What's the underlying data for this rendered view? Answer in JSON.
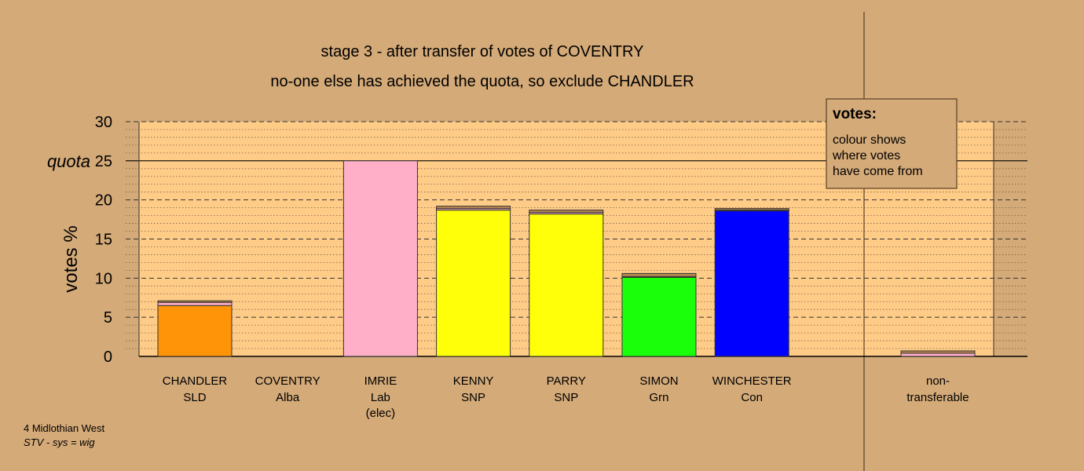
{
  "chart_data": {
    "type": "bar",
    "title": "stage 3 - after transfer of votes of COVENTRY",
    "subtitle": "no-one else has achieved the quota, so exclude CHANDLER",
    "ylabel": "votes %",
    "ylim": [
      0,
      30
    ],
    "yticks": [
      "0",
      "5",
      "10",
      "15",
      "20",
      "25",
      "30"
    ],
    "quota": 25,
    "quota_label": "quota",
    "grid": true,
    "categories": [
      {
        "name": "CHANDLER",
        "party": "SLD",
        "note": ""
      },
      {
        "name": "COVENTRY",
        "party": "Alba",
        "note": ""
      },
      {
        "name": "IMRIE",
        "party": "Lab",
        "note": "(elec)"
      },
      {
        "name": "KENNY",
        "party": "SNP",
        "note": ""
      },
      {
        "name": "PARRY",
        "party": "SNP",
        "note": ""
      },
      {
        "name": "SIMON",
        "party": "Grn",
        "note": ""
      },
      {
        "name": "WINCHESTER",
        "party": "Con",
        "note": ""
      }
    ],
    "bars": [
      {
        "segments": [
          {
            "from": "SLD",
            "value": 6.5,
            "color": "#ff9408"
          },
          {
            "from": "Lab",
            "value": 0.4,
            "color": "#ffb0c8"
          },
          {
            "from": "Alba",
            "value": 0.2,
            "color": "#b9874f"
          }
        ]
      },
      {
        "segments": []
      },
      {
        "segments": [
          {
            "from": "Lab",
            "value": 25.0,
            "color": "#ffb0c8"
          }
        ]
      },
      {
        "segments": [
          {
            "from": "SNP",
            "value": 18.7,
            "color": "#ffff0a"
          },
          {
            "from": "Lab",
            "value": 0.2,
            "color": "#ffb0c8"
          },
          {
            "from": "Alba",
            "value": 0.3,
            "color": "#b9874f"
          }
        ]
      },
      {
        "segments": [
          {
            "from": "SNP",
            "value": 18.2,
            "color": "#ffff0a"
          },
          {
            "from": "Lab",
            "value": 0.2,
            "color": "#ffb0c8"
          },
          {
            "from": "Alba",
            "value": 0.3,
            "color": "#b9874f"
          }
        ]
      },
      {
        "segments": [
          {
            "from": "Grn",
            "value": 10.1,
            "color": "#1aff0a"
          },
          {
            "from": "Lab",
            "value": 0.1,
            "color": "#ffb0c8"
          },
          {
            "from": "Alba",
            "value": 0.4,
            "color": "#b9874f"
          }
        ]
      },
      {
        "segments": [
          {
            "from": "Con",
            "value": 18.6,
            "color": "#0000ff"
          },
          {
            "from": "Lab",
            "value": 0.1,
            "color": "#ffb0c8"
          },
          {
            "from": "Alba",
            "value": 0.2,
            "color": "#b9874f"
          }
        ]
      }
    ],
    "nontransferable": {
      "label_line1": "non-",
      "label_line2": "transferable",
      "segments": [
        {
          "from": "Lab",
          "value": 0.4,
          "color": "#ffb0c8"
        },
        {
          "from": "Alba",
          "value": 0.3,
          "color": "#b9874f"
        }
      ]
    },
    "legend": {
      "title": "votes:",
      "lines": [
        "colour shows",
        "where votes",
        "have come from"
      ]
    }
  },
  "footer": {
    "line1": "4 Midlothian West",
    "line2": "STV - sys = wig"
  },
  "colors": {
    "background": "#d4aa78",
    "plot_area": "#ffcc88",
    "legend_box": "#d4aa78"
  }
}
